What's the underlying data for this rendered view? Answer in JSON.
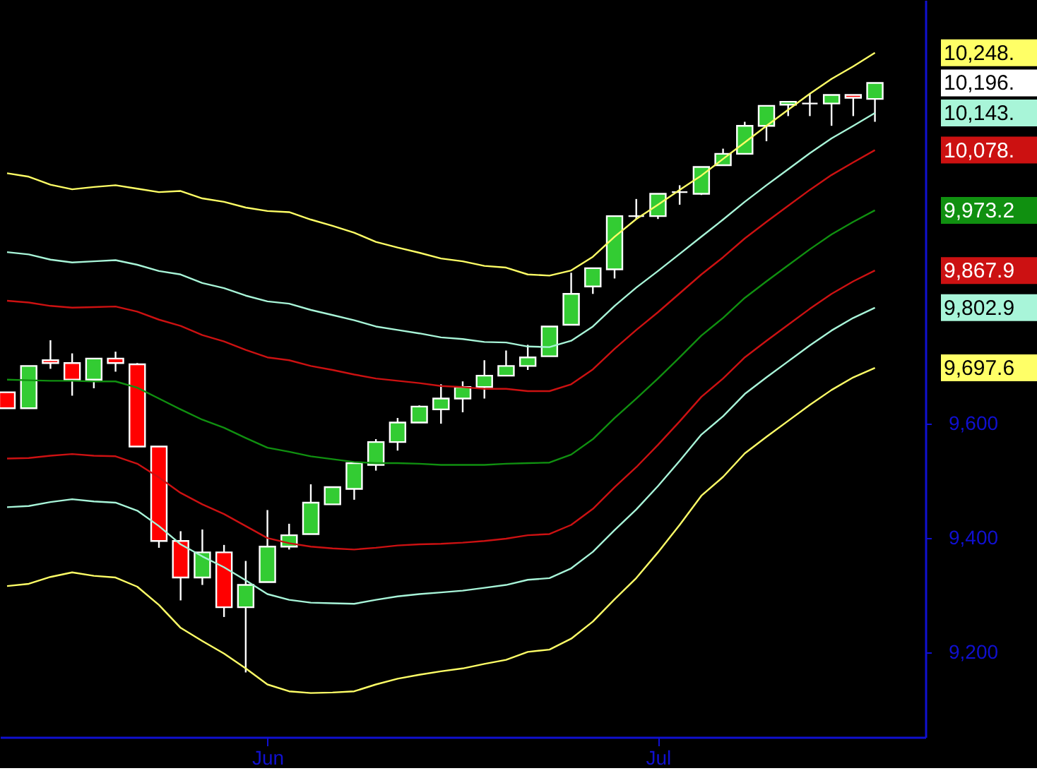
{
  "chart_data": {
    "type": "candlestick",
    "categories": [
      null,
      null,
      null,
      null,
      null,
      null,
      null,
      null,
      null,
      null,
      null,
      null,
      "Jun",
      null,
      null,
      null,
      null,
      null,
      null,
      null,
      null,
      null,
      null,
      null,
      null,
      null,
      null,
      null,
      null,
      null,
      "Jul",
      null,
      null,
      null,
      null,
      null,
      null,
      null,
      null,
      null,
      null
    ],
    "ohlc": [
      [
        9655,
        9655,
        9627,
        9627
      ],
      [
        9627,
        9701,
        9627,
        9701
      ],
      [
        9711,
        9746,
        9696,
        9706
      ],
      [
        9706,
        9723,
        9649,
        9677
      ],
      [
        9677,
        9714,
        9662,
        9714
      ],
      [
        9714,
        9726,
        9691,
        9706
      ],
      [
        9704,
        9706,
        9560,
        9560
      ],
      [
        9560,
        9560,
        9383,
        9395
      ],
      [
        9395,
        9412,
        9291,
        9331
      ],
      [
        9331,
        9415,
        9318,
        9375
      ],
      [
        9375,
        9388,
        9262,
        9279
      ],
      [
        9279,
        9360,
        9165,
        9318
      ],
      [
        9323,
        9449,
        9323,
        9385
      ],
      [
        9385,
        9425,
        9380,
        9405
      ],
      [
        9407,
        9494,
        9407,
        9462
      ],
      [
        9459,
        9489,
        9459,
        9489
      ],
      [
        9486,
        9531,
        9467,
        9531
      ],
      [
        9528,
        9573,
        9518,
        9568
      ],
      [
        9568,
        9610,
        9553,
        9602
      ],
      [
        9602,
        9632,
        9602,
        9630
      ],
      [
        9625,
        9669,
        9600,
        9644
      ],
      [
        9644,
        9674,
        9620,
        9664
      ],
      [
        9664,
        9711,
        9644,
        9684
      ],
      [
        9684,
        9728,
        9684,
        9701
      ],
      [
        9701,
        9738,
        9694,
        9716
      ],
      [
        9718,
        9770,
        9718,
        9770
      ],
      [
        9773,
        9864,
        9773,
        9827
      ],
      [
        9840,
        9872,
        9827,
        9872
      ],
      [
        9870,
        9963,
        9854,
        9963
      ],
      [
        9963,
        9993,
        9958,
        9963
      ],
      [
        9963,
        10002,
        9958,
        10002
      ],
      [
        10005,
        10017,
        9983,
        10005
      ],
      [
        10002,
        10049,
        10000,
        10049
      ],
      [
        10052,
        10081,
        10052,
        10072
      ],
      [
        10072,
        10128,
        10072,
        10121
      ],
      [
        10121,
        10156,
        10094,
        10156
      ],
      [
        10158,
        10163,
        10138,
        10163
      ],
      [
        10160,
        10178,
        10138,
        10160
      ],
      [
        10160,
        10175,
        10121,
        10175
      ],
      [
        10175,
        10175,
        10138,
        10170
      ],
      [
        10168,
        10196,
        10128,
        10196
      ]
    ],
    "colors": [
      "#ff0000",
      "#33cc33",
      "#ff0000",
      "#ff0000",
      "#33cc33",
      "#ff0000",
      "#ff0000",
      "#ff0000",
      "#ff0000",
      "#33cc33",
      "#ff0000",
      "#33cc33",
      "#33cc33",
      "#33cc33",
      "#33cc33",
      "#33cc33",
      "#33cc33",
      "#33cc33",
      "#33cc33",
      "#33cc33",
      "#33cc33",
      "#33cc33",
      "#33cc33",
      "#33cc33",
      "#33cc33",
      "#33cc33",
      "#33cc33",
      "#33cc33",
      "#33cc33",
      "#ffffff",
      "#33cc33",
      "#ffffff",
      "#33cc33",
      "#33cc33",
      "#33cc33",
      "#33cc33",
      "#33cc33",
      "#ffffff",
      "#33cc33",
      "#ff0000",
      "#33cc33"
    ],
    "series": [
      {
        "type": "line",
        "color": "#ffff66",
        "values": [
          10038,
          10032,
          10018,
          10010,
          10014,
          10017,
          10011,
          10005,
          10007,
          9994,
          9988,
          9978,
          9972,
          9970,
          9957,
          9946,
          9934,
          9918,
          9908,
          9899,
          9889,
          9884,
          9876,
          9873,
          9861,
          9859,
          9868,
          9892,
          9927,
          9958,
          9983,
          10009,
          10034,
          10063,
          10092,
          10121,
          10149,
          10177,
          10203,
          10225,
          10248.8
        ]
      },
      {
        "type": "line",
        "color": "#a8f5d8",
        "values": [
          9900,
          9896,
          9887,
          9882,
          9884,
          9886,
          9878,
          9867,
          9861,
          9846,
          9837,
          9824,
          9814,
          9810,
          9799,
          9790,
          9781,
          9770,
          9764,
          9758,
          9751,
          9748,
          9743,
          9742,
          9735,
          9734,
          9745,
          9770,
          9806,
          9838,
          9867,
          9897,
          9927,
          9957,
          9988,
          10017,
          10045,
          10073,
          10099,
          10121,
          10143.5
        ]
      },
      {
        "type": "line",
        "color": "#cc1111",
        "values": [
          9815,
          9812,
          9806,
          9803,
          9804,
          9805,
          9796,
          9782,
          9771,
          9755,
          9744,
          9729,
          9716,
          9711,
          9701,
          9694,
          9686,
          9679,
          9675,
          9671,
          9666,
          9664,
          9661,
          9661,
          9657,
          9657,
          9669,
          9695,
          9731,
          9764,
          9795,
          9828,
          9861,
          9891,
          9924,
          9953,
          9981,
          10009,
          10035,
          10057,
          10078.5
        ]
      },
      {
        "type": "line",
        "color": "#109010",
        "values": [
          9677,
          9676,
          9675,
          9675,
          9674,
          9674,
          9663,
          9644,
          9625,
          9607,
          9593,
          9575,
          9558,
          9551,
          9543,
          9538,
          9533,
          9531,
          9531,
          9530,
          9528,
          9528,
          9528,
          9530,
          9531,
          9532,
          9546,
          9573,
          9610,
          9644,
          9679,
          9716,
          9754,
          9785,
          9820,
          9849,
          9877,
          9905,
          9931,
          9953,
          9973.2
        ]
      },
      {
        "type": "line",
        "color": "#cc1112",
        "values": [
          9539,
          9540,
          9544,
          9547,
          9544,
          9543,
          9530,
          9506,
          9479,
          9459,
          9442,
          9421,
          9400,
          9391,
          9385,
          9382,
          9380,
          9383,
          9387,
          9389,
          9390,
          9392,
          9395,
          9399,
          9405,
          9407,
          9423,
          9451,
          9489,
          9524,
          9563,
          9604,
          9647,
          9679,
          9716,
          9745,
          9773,
          9801,
          9827,
          9849,
          9867.9
        ]
      },
      {
        "type": "line",
        "color": "#a8f5d9",
        "values": [
          9454,
          9456,
          9463,
          9468,
          9464,
          9462,
          9448,
          9421,
          9389,
          9368,
          9349,
          9326,
          9302,
          9292,
          9287,
          9286,
          9285,
          9292,
          9298,
          9302,
          9305,
          9308,
          9313,
          9318,
          9327,
          9330,
          9347,
          9376,
          9414,
          9450,
          9491,
          9535,
          9581,
          9613,
          9652,
          9681,
          9709,
          9737,
          9763,
          9785,
          9802.9
        ]
      },
      {
        "type": "line",
        "color": "#ffff67",
        "values": [
          9316,
          9320,
          9332,
          9340,
          9334,
          9331,
          9315,
          9283,
          9243,
          9220,
          9198,
          9172,
          9144,
          9132,
          9129,
          9130,
          9132,
          9144,
          9154,
          9161,
          9167,
          9172,
          9180,
          9187,
          9201,
          9205,
          9224,
          9254,
          9293,
          9330,
          9375,
          9423,
          9474,
          9507,
          9548,
          9577,
          9605,
          9633,
          9659,
          9681,
          9697.6
        ]
      }
    ],
    "ylim": [
      9052,
      10341
    ],
    "yticks": [
      {
        "value": 9200,
        "label": "9,200"
      },
      {
        "value": 9400,
        "label": "9,400"
      },
      {
        "value": 9600,
        "label": "9,600"
      }
    ],
    "grid": false,
    "annotations": [
      "10,248.",
      "10,196.",
      "10,143.",
      "10,078.",
      "9,973.2",
      "9,867.9",
      "9,802.9",
      "9,697.6"
    ]
  }
}
